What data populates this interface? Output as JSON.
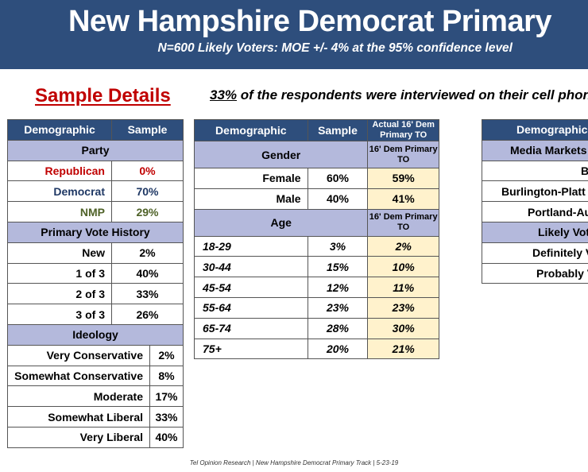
{
  "header": {
    "title": "New Hampshire Democrat Primary",
    "subtitle": "N=600 Likely Voters: MOE +/- 4% at the 95% confidence level"
  },
  "sample_details_title": "Sample Details",
  "cell_note": {
    "pct": "33%",
    "text": " of the respondents were interviewed on their cell phone"
  },
  "table1": {
    "col_demographic": "Demographic",
    "col_sample": "Sample",
    "party": {
      "label": "Party",
      "rows": [
        {
          "label": "Republican",
          "value": "0%"
        },
        {
          "label": "Democrat",
          "value": "70%"
        },
        {
          "label": "NMP",
          "value": "29%"
        }
      ]
    },
    "history": {
      "label": "Primary Vote History",
      "rows": [
        {
          "label": "New",
          "value": "2%"
        },
        {
          "label": "1 of 3",
          "value": "40%"
        },
        {
          "label": "2 of 3",
          "value": "33%"
        },
        {
          "label": "3 of 3",
          "value": "26%"
        }
      ]
    },
    "ideology": {
      "label": "Ideology",
      "rows": [
        {
          "label": "Very Conservative",
          "value": "2%"
        },
        {
          "label": "Somewhat Conservative",
          "value": "8%"
        },
        {
          "label": "Moderate",
          "value": "17%"
        },
        {
          "label": "Somewhat Liberal",
          "value": "33%"
        },
        {
          "label": "Very Liberal",
          "value": "40%"
        }
      ]
    }
  },
  "table2": {
    "col_demographic": "Demographic",
    "col_sample": "Sample",
    "col_actual": "Actual 16' Dem Primary TO",
    "gender": {
      "label": "Gender",
      "sub": "16' Dem Primary TO",
      "rows": [
        {
          "label": "Female",
          "sample": "60%",
          "actual": "59%"
        },
        {
          "label": "Male",
          "sample": "40%",
          "actual": "41%"
        }
      ]
    },
    "age": {
      "label": "Age",
      "sub": "16' Dem Primary TO",
      "rows": [
        {
          "label": "18-29",
          "sample": "3%",
          "actual": "2%"
        },
        {
          "label": "30-44",
          "sample": "15%",
          "actual": "10%"
        },
        {
          "label": "45-54",
          "sample": "12%",
          "actual": "11%"
        },
        {
          "label": "55-64",
          "sample": "23%",
          "actual": "23%"
        },
        {
          "label": "65-74",
          "sample": "28%",
          "actual": "30%"
        },
        {
          "label": "75+",
          "sample": "20%",
          "actual": "21%"
        }
      ]
    }
  },
  "table3": {
    "col_demographic": "Demographic",
    "media_label": "Media Markets",
    "media_rows": [
      "B",
      "Burlington-Platt",
      "Portland-Au"
    ],
    "likely_label": "Likely Vot",
    "likely_rows": [
      "Definitely V",
      "Probably V"
    ]
  },
  "footer": "Tel Opinion Research | New Hampshire Democrat Primary Track | 5-23-19"
}
